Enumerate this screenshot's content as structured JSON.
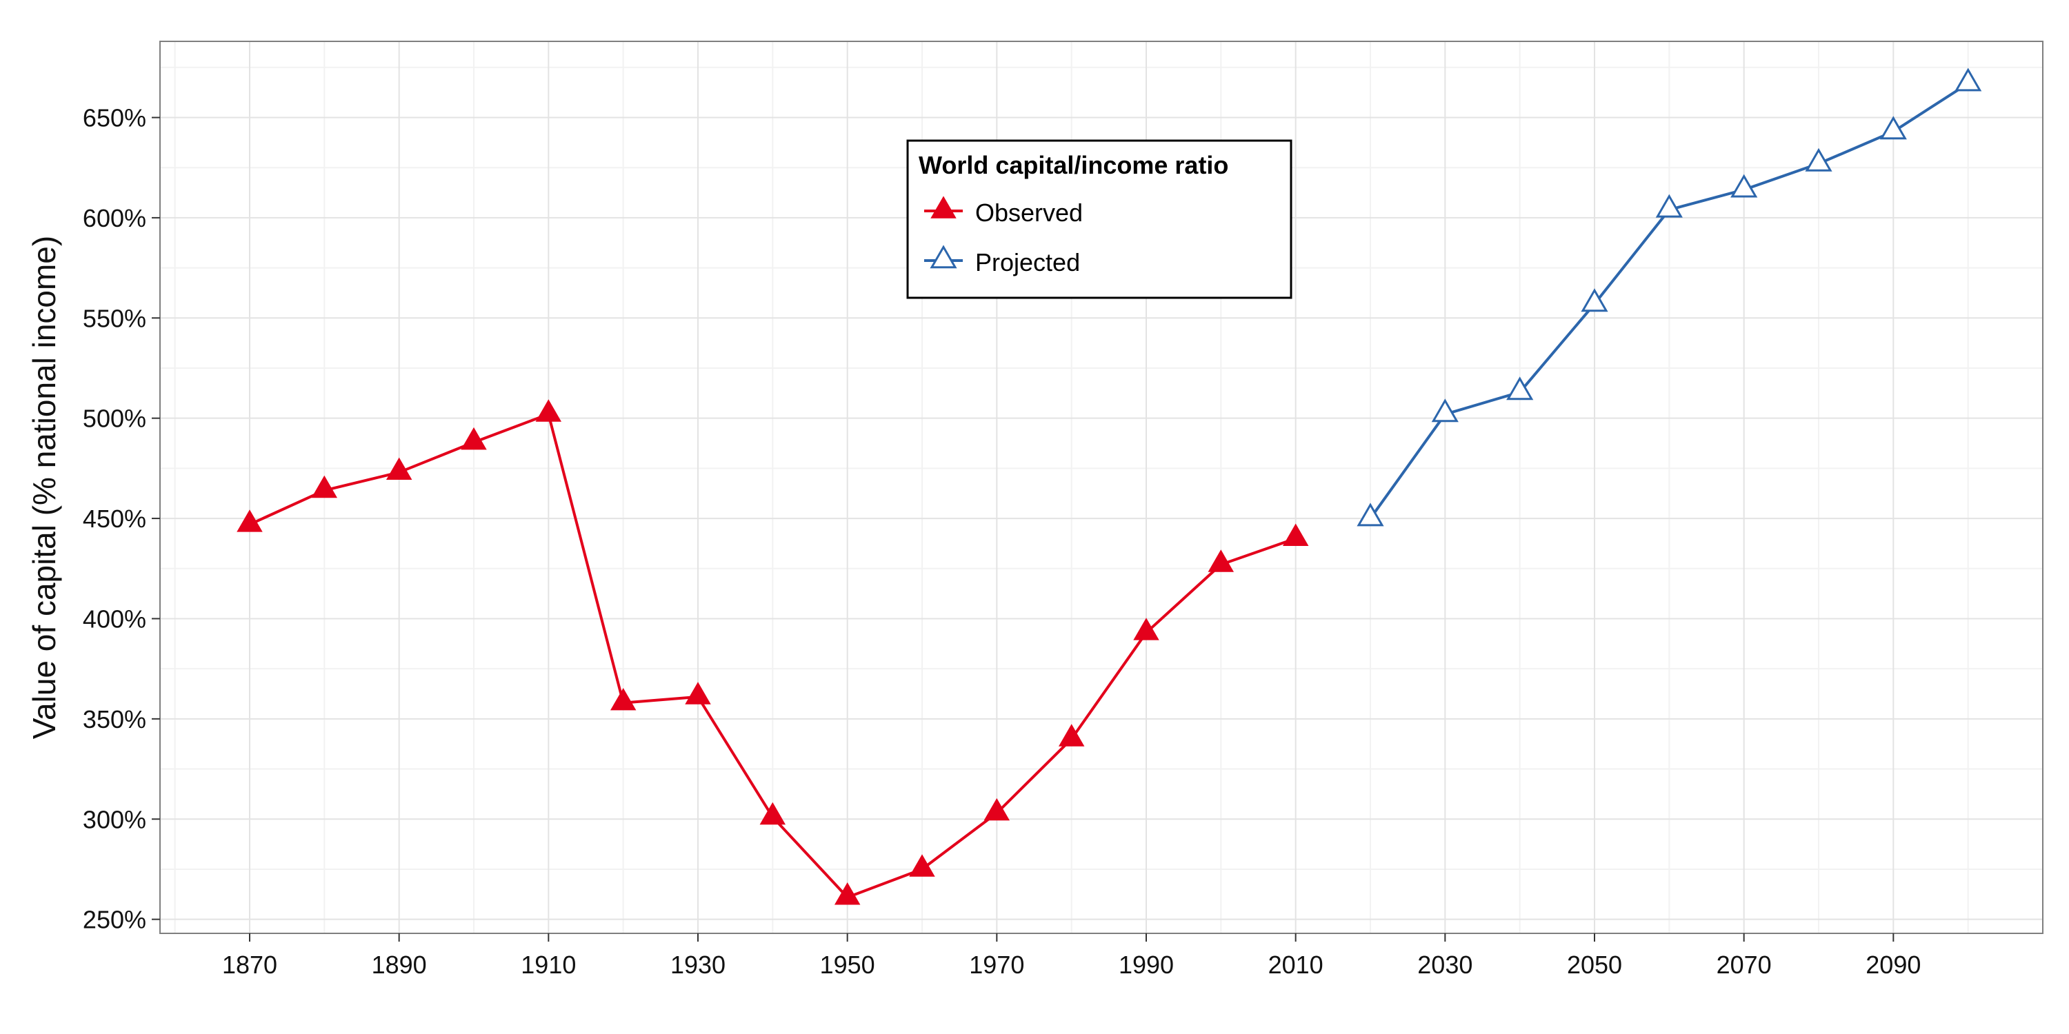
{
  "chart_data": {
    "type": "line",
    "title": "",
    "xlabel": "",
    "ylabel": "Value of capital (% national income)",
    "xlim": [
      1858,
      2110
    ],
    "ylim": [
      243,
      688
    ],
    "x_ticks": [
      1870,
      1890,
      1910,
      1930,
      1950,
      1970,
      1990,
      2010,
      2030,
      2050,
      2070,
      2090
    ],
    "y_ticks": [
      250,
      300,
      350,
      400,
      450,
      500,
      550,
      600,
      650
    ],
    "y_tick_labels": [
      "250%",
      "300%",
      "350%",
      "400%",
      "450%",
      "500%",
      "550%",
      "600%",
      "650%"
    ],
    "grid": true,
    "legend": {
      "title": "World capital/income ratio",
      "position": "top-center"
    },
    "series": [
      {
        "name": "Observed",
        "color": "#e3001b",
        "marker": "filled-triangle",
        "x": [
          1870,
          1880,
          1890,
          1900,
          1910,
          1920,
          1930,
          1940,
          1950,
          1960,
          1970,
          1980,
          1990,
          2000,
          2010
        ],
        "values": [
          447,
          464,
          473,
          488,
          502,
          358,
          361,
          301,
          261,
          275,
          303,
          340,
          393,
          427,
          440
        ]
      },
      {
        "name": "Projected",
        "color": "#2c66ac",
        "marker": "open-triangle",
        "x": [
          2020,
          2030,
          2040,
          2050,
          2060,
          2070,
          2080,
          2090,
          2100
        ],
        "values": [
          450,
          502,
          513,
          557,
          604,
          614,
          627,
          643,
          667
        ]
      }
    ]
  }
}
